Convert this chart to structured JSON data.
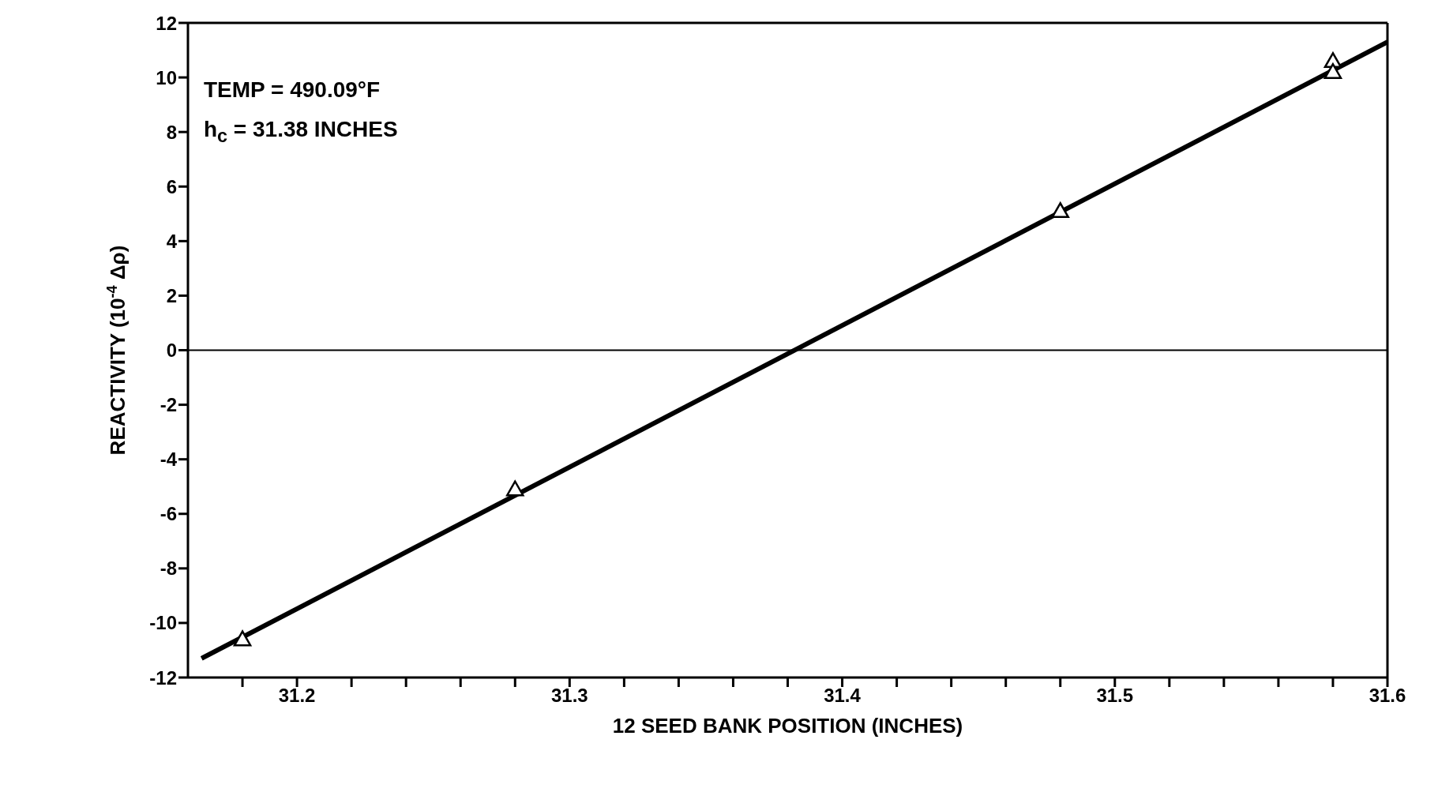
{
  "chart_data": {
    "type": "scatter",
    "xlabel": "12 SEED BANK POSITION (INCHES)",
    "ylabel": "REACTIVITY (10$^{-4}$ Δρ)",
    "annotations": [
      "TEMP = 490.09°F",
      "h$_{c}$ = 31.38 INCHES"
    ],
    "xlim": [
      31.16,
      31.6
    ],
    "xticks": [
      {
        "value": 31.18,
        "label": null
      },
      31.2,
      {
        "value": 31.22,
        "label": null
      },
      {
        "value": 31.24,
        "label": null
      },
      {
        "value": 31.26,
        "label": null
      },
      {
        "value": 31.28,
        "label": null
      },
      31.3,
      {
        "value": 31.32,
        "label": null
      },
      {
        "value": 31.34,
        "label": null
      },
      {
        "value": 31.36,
        "label": null
      },
      {
        "value": 31.38,
        "label": null
      },
      31.4,
      {
        "value": 31.42,
        "label": null
      },
      {
        "value": 31.44,
        "label": null
      },
      {
        "value": 31.46,
        "label": null
      },
      {
        "value": 31.48,
        "label": null
      },
      31.5,
      {
        "value": 31.52,
        "label": null
      },
      {
        "value": 31.54,
        "label": null
      },
      {
        "value": 31.56,
        "label": null
      },
      {
        "value": 31.58,
        "label": null
      },
      31.6
    ],
    "ylim": [
      -12,
      12
    ],
    "yticks": [
      -12,
      -10,
      -8,
      -6,
      -4,
      -2,
      0,
      2,
      4,
      6,
      8,
      10,
      12
    ],
    "marker": "triangle",
    "ref_lines": [
      {
        "axis": "y",
        "value": 0,
        "color": "#000000"
      }
    ],
    "series": [
      {
        "color": "#000000",
        "x": [
          31.18,
          31.28,
          31.48,
          31.58,
          31.58
        ],
        "values": [
          -10.6,
          -5.1,
          5.1,
          10.6,
          10.2
        ]
      },
      {
        "type": "line",
        "color": "#000000",
        "line_style": "solid",
        "marker": "none",
        "x": [
          31.165,
          31.6
        ],
        "values": [
          -11.3,
          11.3
        ]
      }
    ]
  }
}
